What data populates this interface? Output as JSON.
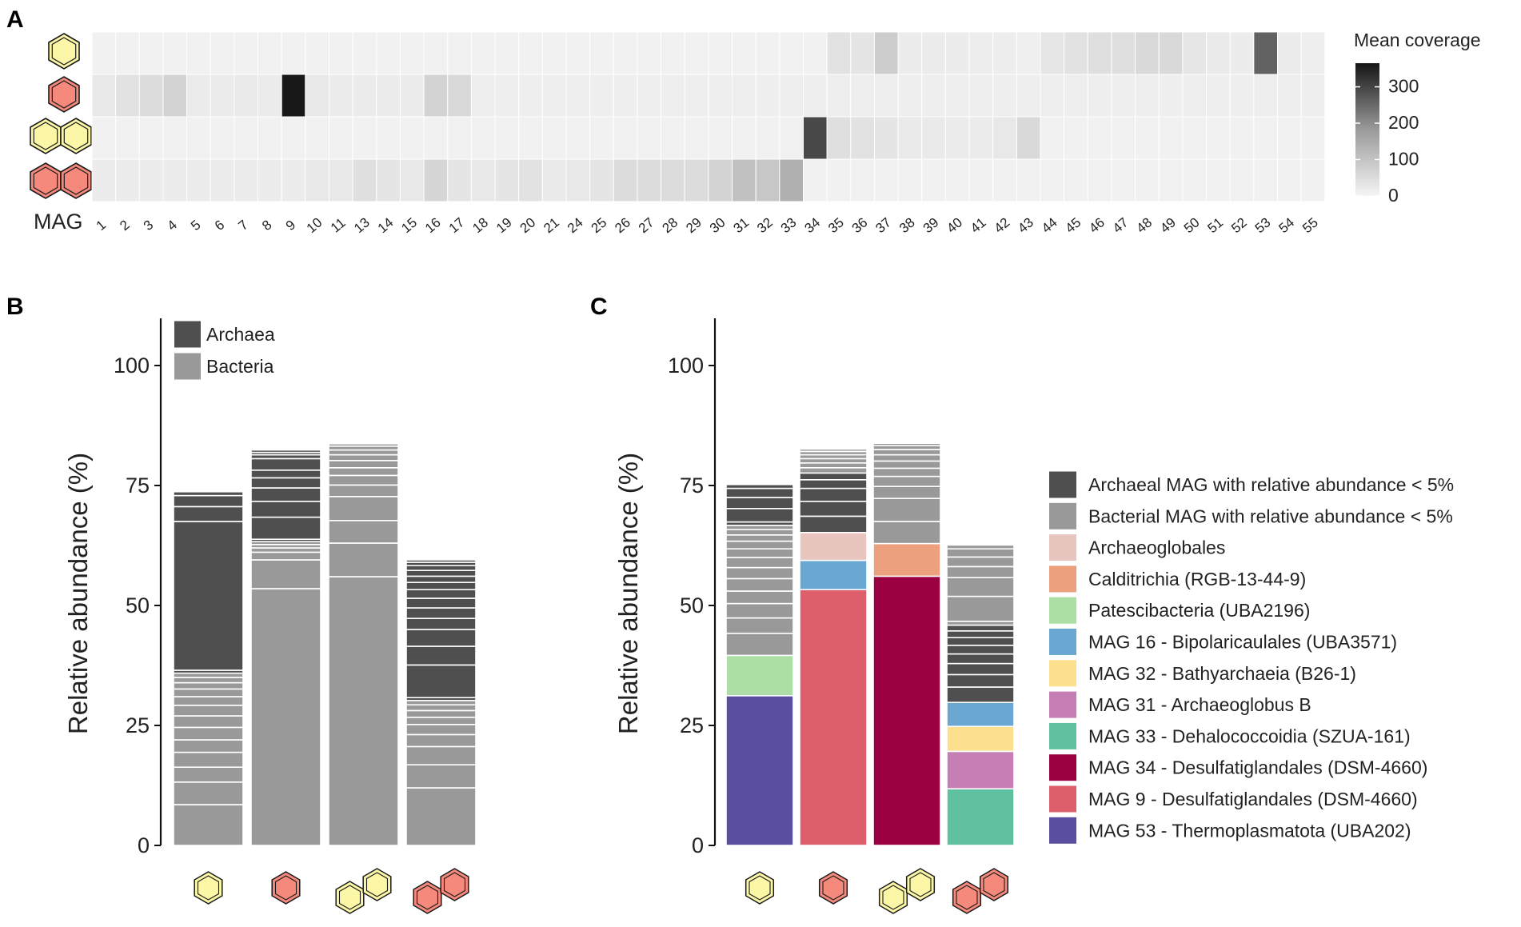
{
  "panels": {
    "a": "A",
    "b": "B",
    "c": "C"
  },
  "molecules": [
    "benzene",
    "toluene",
    "naphthalene",
    "2-methylnaphthalene"
  ],
  "colors": {
    "benzene_ring": "#fbf7a6",
    "toluene_ring": "#f4897c",
    "archaea": "#4f4f4f",
    "bacteria": "#999999"
  },
  "chart_data": [
    {
      "type": "heatmap",
      "title": "Mean coverage",
      "xlabel": "MAG",
      "x": [
        "1",
        "2",
        "3",
        "4",
        "5",
        "6",
        "7",
        "8",
        "9",
        "10",
        "11",
        "13",
        "14",
        "15",
        "16",
        "17",
        "18",
        "19",
        "20",
        "21",
        "24",
        "25",
        "26",
        "27",
        "28",
        "29",
        "30",
        "31",
        "32",
        "33",
        "34",
        "35",
        "36",
        "37",
        "38",
        "39",
        "40",
        "41",
        "42",
        "43",
        "44",
        "45",
        "46",
        "47",
        "48",
        "49",
        "50",
        "51",
        "52",
        "53",
        "54",
        "55"
      ],
      "rows": [
        "benzene",
        "toluene",
        "naphthalene",
        "2-methylnaphthalene"
      ],
      "values": [
        [
          0,
          0,
          0,
          0,
          0,
          0,
          0,
          0,
          0,
          0,
          0,
          0,
          0,
          0,
          0,
          0,
          0,
          0,
          0,
          0,
          0,
          0,
          0,
          0,
          0,
          0,
          0,
          0,
          0,
          0,
          0,
          25,
          20,
          60,
          8,
          10,
          8,
          6,
          6,
          4,
          18,
          25,
          30,
          30,
          40,
          40,
          18,
          12,
          8,
          240,
          10,
          5
        ],
        [
          15,
          25,
          35,
          50,
          10,
          10,
          12,
          10,
          365,
          15,
          8,
          8,
          8,
          8,
          50,
          40,
          5,
          5,
          5,
          5,
          5,
          5,
          5,
          5,
          5,
          5,
          5,
          5,
          5,
          5,
          5,
          5,
          5,
          5,
          5,
          5,
          5,
          5,
          5,
          5,
          5,
          5,
          5,
          5,
          5,
          5,
          5,
          5,
          5,
          5,
          5,
          5
        ],
        [
          0,
          0,
          0,
          0,
          0,
          0,
          0,
          0,
          0,
          0,
          0,
          0,
          0,
          0,
          0,
          0,
          0,
          0,
          0,
          0,
          0,
          0,
          0,
          0,
          0,
          0,
          0,
          0,
          0,
          0,
          285,
          30,
          25,
          20,
          12,
          12,
          10,
          10,
          15,
          40,
          0,
          0,
          0,
          0,
          0,
          0,
          0,
          0,
          0,
          0,
          0,
          0
        ],
        [
          8,
          8,
          8,
          8,
          8,
          8,
          8,
          8,
          8,
          15,
          15,
          30,
          20,
          15,
          45,
          20,
          15,
          20,
          25,
          12,
          15,
          20,
          35,
          35,
          35,
          35,
          50,
          80,
          70,
          110,
          0,
          0,
          0,
          0,
          0,
          0,
          0,
          0,
          0,
          0,
          0,
          0,
          0,
          0,
          0,
          0,
          0,
          0,
          0,
          0,
          0,
          0
        ]
      ],
      "legend": {
        "ticks": [
          0,
          100,
          200,
          300
        ],
        "range": [
          0,
          365
        ]
      }
    },
    {
      "type": "bar",
      "stacked": true,
      "ylabel": "Relative abundance (%)",
      "ylim": [
        0,
        105
      ],
      "yticks": [
        0,
        25,
        50,
        75,
        100
      ],
      "categories": [
        "benzene",
        "toluene",
        "naphthalene",
        "2-methylnaphthalene"
      ],
      "legend": [
        {
          "name": "Archaea",
          "color": "#4f4f4f"
        },
        {
          "name": "Bacteria",
          "color": "#999999"
        }
      ],
      "stacks": [
        [
          [
            8.5,
            "B"
          ],
          [
            4.7,
            "B"
          ],
          [
            3.1,
            "B"
          ],
          [
            3.1,
            "B"
          ],
          [
            2.6,
            "B"
          ],
          [
            2.6,
            "B"
          ],
          [
            2.4,
            "B"
          ],
          [
            2.2,
            "B"
          ],
          [
            1.8,
            "B"
          ],
          [
            1.6,
            "B"
          ],
          [
            1.3,
            "B"
          ],
          [
            1.1,
            "B"
          ],
          [
            0.9,
            "B"
          ],
          [
            0.6,
            "A"
          ],
          [
            31,
            "A"
          ],
          [
            3.1,
            "A"
          ],
          [
            2.3,
            "A"
          ],
          [
            0.8,
            "A"
          ]
        ],
        [
          [
            53.5,
            "B"
          ],
          [
            6,
            "B"
          ],
          [
            1.6,
            "B"
          ],
          [
            0.9,
            "B"
          ],
          [
            0.7,
            "B"
          ],
          [
            0.6,
            "B"
          ],
          [
            0.5,
            "A"
          ],
          [
            4.6,
            "A"
          ],
          [
            3.3,
            "A"
          ],
          [
            2.8,
            "A"
          ],
          [
            2.1,
            "A"
          ],
          [
            1.6,
            "A"
          ],
          [
            2.4,
            "A"
          ],
          [
            0.8,
            "A"
          ],
          [
            0.5,
            "A"
          ],
          [
            0.5,
            "A"
          ]
        ],
        [
          [
            56,
            "B"
          ],
          [
            7,
            "B"
          ],
          [
            4.7,
            "B"
          ],
          [
            5,
            "B"
          ],
          [
            2.4,
            "B"
          ],
          [
            2,
            "B"
          ],
          [
            1.6,
            "B"
          ],
          [
            1.5,
            "B"
          ],
          [
            1.2,
            "B"
          ],
          [
            1,
            "B"
          ],
          [
            0.8,
            "B"
          ],
          [
            0.5,
            "B"
          ]
        ],
        [
          [
            12,
            "B"
          ],
          [
            4.8,
            "B"
          ],
          [
            3.8,
            "B"
          ],
          [
            2.5,
            "B"
          ],
          [
            2.1,
            "B"
          ],
          [
            1.5,
            "B"
          ],
          [
            1.4,
            "B"
          ],
          [
            1.2,
            "B"
          ],
          [
            0.9,
            "B"
          ],
          [
            0.6,
            "A"
          ],
          [
            6.8,
            "A"
          ],
          [
            3.9,
            "A"
          ],
          [
            3.5,
            "A"
          ],
          [
            2.3,
            "A"
          ],
          [
            2.2,
            "A"
          ],
          [
            2,
            "A"
          ],
          [
            1.8,
            "A"
          ],
          [
            1.5,
            "A"
          ],
          [
            1.3,
            "A"
          ],
          [
            1.2,
            "A"
          ],
          [
            1,
            "A"
          ],
          [
            0.7,
            "A"
          ],
          [
            0.5,
            "A"
          ]
        ]
      ]
    },
    {
      "type": "bar",
      "stacked": true,
      "ylabel": "Relative abundance (%)",
      "ylim": [
        0,
        105
      ],
      "yticks": [
        0,
        25,
        50,
        75,
        100
      ],
      "categories": [
        "benzene",
        "toluene",
        "naphthalene",
        "2-methylnaphthalene"
      ],
      "legend": [
        {
          "key": "AR",
          "name": "Archaeal MAG with relative abundance < 5%",
          "color": "#4f4f4f"
        },
        {
          "key": "BR",
          "name": "Bacterial MAG with relative abundance < 5%",
          "color": "#999999"
        },
        {
          "key": "AG",
          "name": "Archaeoglobales",
          "color": "#e8c5bf"
        },
        {
          "key": "CA",
          "name": "Calditrichia (RGB-13-44-9)",
          "color": "#eca07e"
        },
        {
          "key": "PA",
          "name": "Patescibacteria (UBA2196)",
          "color": "#acdea5"
        },
        {
          "key": "M16",
          "name": "MAG 16 - Bipolaricaulales (UBA3571)",
          "color": "#6aa8d2"
        },
        {
          "key": "M32",
          "name": "MAG 32 - Bathyarchaeia (B26-1)",
          "color": "#fde08d"
        },
        {
          "key": "M31",
          "name": "MAG 31 - Archaeoglobus B",
          "color": "#c57fb4"
        },
        {
          "key": "M33",
          "name": "MAG 33 - Dehalococcoidia (SZUA-161)",
          "color": "#5fc09f"
        },
        {
          "key": "M34",
          "name": "MAG 34 - Desulfatiglandales (DSM-4660)",
          "color": "#9b0040"
        },
        {
          "key": "M9",
          "name": "MAG 9 - Desulfatiglandales (DSM-4660)",
          "color": "#de5f6c"
        },
        {
          "key": "M53",
          "name": "MAG 53 - Thermoplasmatota (UBA202)",
          "color": "#5a4ea0"
        }
      ],
      "stacks": [
        [
          [
            31.2,
            "M53"
          ],
          [
            8.4,
            "PA"
          ],
          [
            4.6,
            "BR"
          ],
          [
            3.2,
            "BR"
          ],
          [
            3,
            "BR"
          ],
          [
            2.6,
            "BR"
          ],
          [
            2.6,
            "BR"
          ],
          [
            2.3,
            "BR"
          ],
          [
            2.1,
            "BR"
          ],
          [
            1.8,
            "BR"
          ],
          [
            1.6,
            "BR"
          ],
          [
            1.3,
            "BR"
          ],
          [
            1.1,
            "BR"
          ],
          [
            0.9,
            "BR"
          ],
          [
            0.7,
            "AR"
          ],
          [
            2.8,
            "AR"
          ],
          [
            2.3,
            "AR"
          ],
          [
            1.9,
            "AR"
          ],
          [
            0.8,
            "AR"
          ]
        ],
        [
          [
            53.3,
            "M9"
          ],
          [
            6.1,
            "M16"
          ],
          [
            5.8,
            "AG"
          ],
          [
            3.4,
            "AR"
          ],
          [
            3.1,
            "AR"
          ],
          [
            2.7,
            "AR"
          ],
          [
            1.8,
            "AR"
          ],
          [
            1.4,
            "AR"
          ],
          [
            1.1,
            "BR"
          ],
          [
            1,
            "BR"
          ],
          [
            0.9,
            "BR"
          ],
          [
            0.8,
            "BR"
          ],
          [
            0.7,
            "BR"
          ],
          [
            0.5,
            "BR"
          ]
        ],
        [
          [
            56.1,
            "M34"
          ],
          [
            6.8,
            "CA"
          ],
          [
            4.6,
            "BR"
          ],
          [
            4.8,
            "BR"
          ],
          [
            2.5,
            "BR"
          ],
          [
            2.1,
            "BR"
          ],
          [
            1.7,
            "BR"
          ],
          [
            1.5,
            "BR"
          ],
          [
            1.3,
            "BR"
          ],
          [
            1.1,
            "BR"
          ],
          [
            0.8,
            "BR"
          ],
          [
            0.5,
            "BR"
          ]
        ],
        [
          [
            11.8,
            "M33"
          ],
          [
            7.8,
            "M31"
          ],
          [
            5.2,
            "M32"
          ],
          [
            5,
            "M16"
          ],
          [
            3.2,
            "AR"
          ],
          [
            2.6,
            "AR"
          ],
          [
            2.3,
            "AR"
          ],
          [
            2,
            "AR"
          ],
          [
            1.8,
            "AR"
          ],
          [
            1.6,
            "AR"
          ],
          [
            1.4,
            "AR"
          ],
          [
            1.2,
            "AR"
          ],
          [
            0.8,
            "BR"
          ],
          [
            5.2,
            "BR"
          ],
          [
            3.9,
            "BR"
          ],
          [
            2.3,
            "BR"
          ],
          [
            2,
            "BR"
          ],
          [
            1.7,
            "BR"
          ],
          [
            0.8,
            "BR"
          ]
        ]
      ]
    }
  ]
}
